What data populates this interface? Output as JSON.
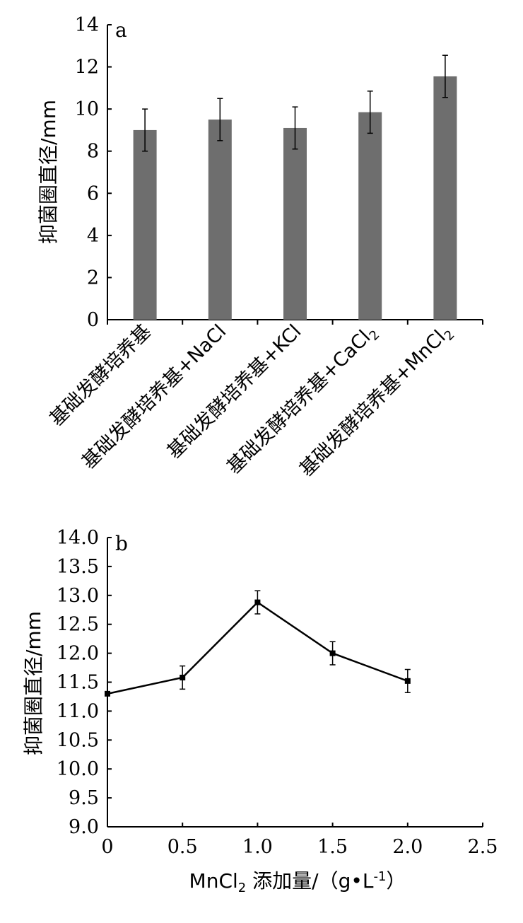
{
  "chart_data": [
    {
      "type": "bar",
      "panel_label": "a",
      "ylabel": "抑菌圈直径/mm",
      "ylim": [
        0,
        14
      ],
      "yticks": [
        0,
        2,
        4,
        6,
        8,
        10,
        12,
        14
      ],
      "categories": [
        {
          "base": "基础发酵培养基",
          "sub": ""
        },
        {
          "base": "基础发酵培养基+NaCl",
          "sub": ""
        },
        {
          "base": "基础发酵培养基+KCl",
          "sub": ""
        },
        {
          "base": "基础发酵培养基+CaCl",
          "sub": "2"
        },
        {
          "base": "基础发酵培养基+MnCl",
          "sub": "2"
        }
      ],
      "values": [
        9.0,
        9.5,
        9.1,
        9.85,
        11.55
      ],
      "errors": [
        1.0,
        1.0,
        1.0,
        1.0,
        1.0
      ],
      "bar_color": "#6e6e6e"
    },
    {
      "type": "line",
      "panel_label": "b",
      "ylabel": "抑菌圈直径/mm",
      "xlabel_parts": [
        "MnCl",
        "2",
        " 添加量/（g•L",
        "-1",
        "）"
      ],
      "xlim": [
        0,
        2.5
      ],
      "ylim": [
        9.0,
        14.0
      ],
      "xticks": [
        "0",
        "0.5",
        "1.0",
        "1.5",
        "2.0",
        "2.5"
      ],
      "yticks": [
        "9.0",
        "9.5",
        "10.0",
        "10.5",
        "11.0",
        "11.5",
        "12.0",
        "12.5",
        "13.0",
        "13.5",
        "14.0"
      ],
      "x": [
        0,
        0.5,
        1.0,
        1.5,
        2.0
      ],
      "y": [
        11.3,
        11.58,
        12.88,
        12.0,
        11.52
      ],
      "errors": [
        0.0,
        0.2,
        0.2,
        0.2,
        0.2
      ]
    }
  ]
}
